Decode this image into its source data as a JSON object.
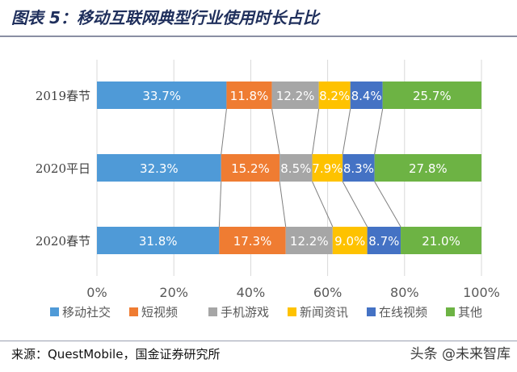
{
  "title": "图表 5：移动互联网典型行业使用时长占比",
  "source": "来源：QuestMobile，国金证券研究所",
  "watermark": "头条 @未来智库",
  "chart_data": {
    "type": "bar",
    "orientation": "horizontal",
    "stacked": true,
    "percent": true,
    "categories": [
      "2019春节",
      "2020平日",
      "2020春节"
    ],
    "series": [
      {
        "name": "移动社交",
        "color": "#4f9ad7",
        "values": [
          33.7,
          32.3,
          31.8
        ]
      },
      {
        "name": "短视频",
        "color": "#ef7c32",
        "values": [
          11.8,
          15.2,
          17.3
        ]
      },
      {
        "name": "手机游戏",
        "color": "#a6a6a6",
        "values": [
          12.2,
          8.5,
          12.2
        ]
      },
      {
        "name": "新闻资讯",
        "color": "#fec200",
        "values": [
          8.2,
          7.9,
          9.0
        ]
      },
      {
        "name": "在线视频",
        "color": "#4472c4",
        "values": [
          8.4,
          8.3,
          8.7
        ]
      },
      {
        "name": "其他",
        "color": "#6db344",
        "values": [
          25.7,
          27.8,
          21.0
        ]
      }
    ],
    "xlim": [
      0,
      100
    ],
    "xticks": [
      "0%",
      "20%",
      "40%",
      "60%",
      "80%",
      "100%"
    ],
    "grid": true,
    "legend_position": "bottom",
    "series_lines": true
  }
}
